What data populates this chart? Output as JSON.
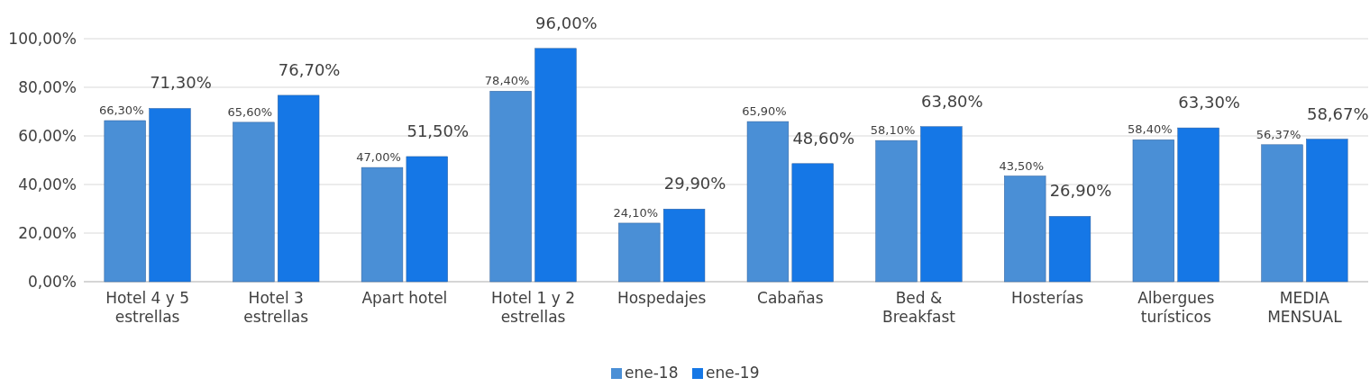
{
  "chart_data": {
    "type": "bar",
    "categories": [
      "Hotel 4 y 5 estrellas",
      "Hotel 3 estrellas",
      "Apart hotel",
      "Hotel 1 y 2 estrellas",
      "Hospedajes",
      "Cabañas",
      "Bed & Breakfast",
      "Hosterías",
      "Albergues turísticos",
      "MEDIA MENSUAL"
    ],
    "series": [
      {
        "name": "ene-18",
        "color": "#4a8fd6",
        "values": [
          66.3,
          65.6,
          47.0,
          78.4,
          24.1,
          65.9,
          58.1,
          43.5,
          58.4,
          56.37
        ],
        "value_labels": [
          "66,30%",
          "65,60%",
          "47,00%",
          "78,40%",
          "24,10%",
          "65,90%",
          "58,10%",
          "43,50%",
          "58,40%",
          "56,37%"
        ]
      },
      {
        "name": "ene-19",
        "color": "#1577e6",
        "values": [
          71.3,
          76.7,
          51.5,
          96.0,
          29.9,
          48.6,
          63.8,
          26.9,
          63.3,
          58.67
        ],
        "value_labels": [
          "71,30%",
          "76,70%",
          "51,50%",
          "96,00%",
          "29,90%",
          "48,60%",
          "63,80%",
          "26,90%",
          "63,30%",
          "58,67%"
        ]
      }
    ],
    "ylim": [
      0,
      100
    ],
    "yticks": [
      {
        "value": 0,
        "label": "0,00%"
      },
      {
        "value": 20,
        "label": "20,00%"
      },
      {
        "value": 40,
        "label": "40,00%"
      },
      {
        "value": 60,
        "label": "60,00%"
      },
      {
        "value": 80,
        "label": "80,00%"
      },
      {
        "value": 100,
        "label": "100,00%"
      }
    ],
    "grid": "y",
    "legend": "bottom"
  }
}
